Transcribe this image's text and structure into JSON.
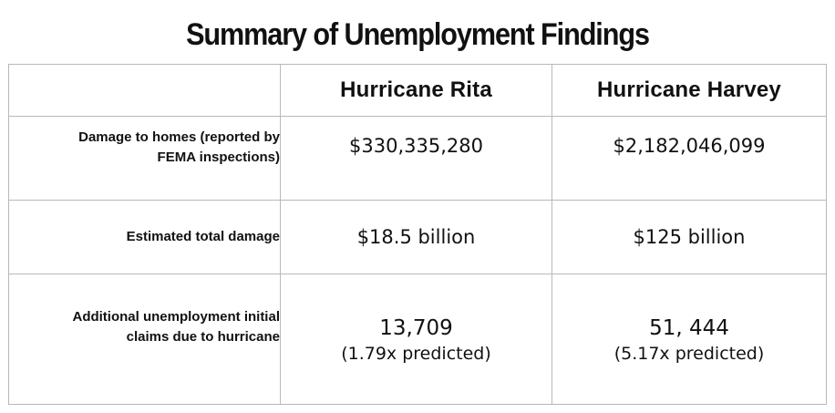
{
  "title": "Summary of Unemployment Findings",
  "table": {
    "columns": [
      "",
      "Hurricane Rita",
      "Hurricane Harvey"
    ],
    "rows": [
      {
        "label_line1": "Damage to homes (reported by",
        "label_line2": "FEMA inspections)",
        "rita": "$330,335,280",
        "harvey": "$2,182,046,099"
      },
      {
        "label": "Estimated total damage",
        "rita": "$18.5 billion",
        "harvey": "$125 billion"
      },
      {
        "label_line1": "Additional unemployment initial",
        "label_line2": "claims due to hurricane",
        "rita": "13,709",
        "rita_note": "(1.79x predicted)",
        "harvey": "51, 444",
        "harvey_note": "(5.17x predicted)"
      }
    ]
  }
}
